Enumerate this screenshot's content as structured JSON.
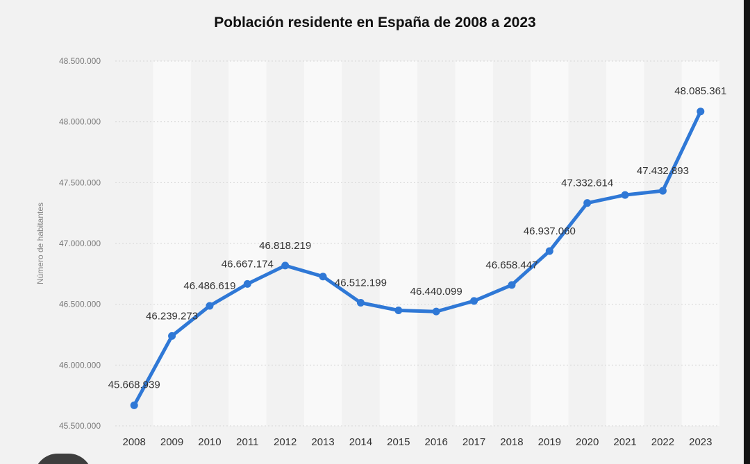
{
  "chart_data": {
    "type": "line",
    "title": "Población residente en España de 2008 a 2023",
    "xlabel": "",
    "ylabel": "Número de habitantes",
    "categories": [
      "2008",
      "2009",
      "2010",
      "2011",
      "2012",
      "2013",
      "2014",
      "2015",
      "2016",
      "2017",
      "2018",
      "2019",
      "2020",
      "2021",
      "2022",
      "2023"
    ],
    "values": [
      45668939,
      46239273,
      46486619,
      46667174,
      46818219,
      46727890,
      46512199,
      46449565,
      46440099,
      46527039,
      46658447,
      46937060,
      47332614,
      47398695,
      47432893,
      48085361
    ],
    "data_labels": [
      "45.668.939",
      "46.239.273",
      "46.486.619",
      "46.667.174",
      "46.818.219",
      "",
      "46.512.199",
      "",
      "46.440.099",
      "",
      "46.658.447",
      "46.937.060",
      "47.332.614",
      "",
      "47.432.893",
      "48.085.361"
    ],
    "y_ticks": [
      "45.500.000",
      "46.000.000",
      "46.500.000",
      "47.000.000",
      "47.500.000",
      "48.000.000",
      "48.500.000"
    ],
    "y_tick_values": [
      45500000,
      46000000,
      46500000,
      47000000,
      47500000,
      48000000,
      48500000
    ],
    "ylim": [
      45500000,
      48500000
    ],
    "grid": true,
    "legend": "none",
    "colors": {
      "line": "#2f78d6",
      "band": "#f9f9f9",
      "grid": "#d6d6d6"
    }
  }
}
